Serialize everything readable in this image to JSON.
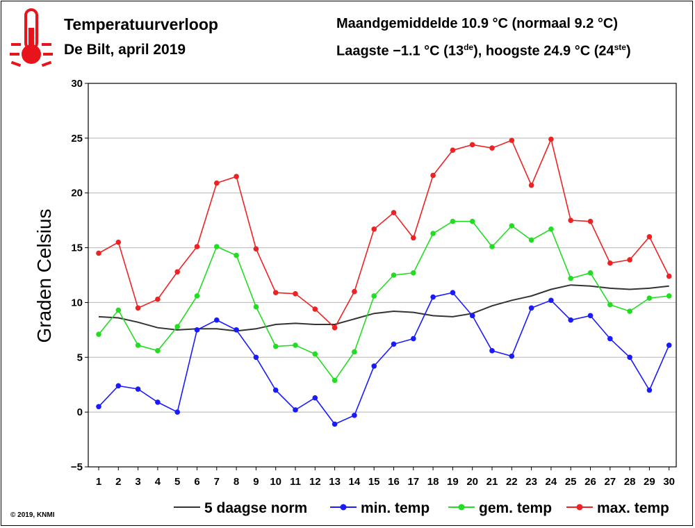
{
  "header": {
    "title": "Temperatuurverloop",
    "subtitle": "De Bilt, april 2019",
    "monthly_avg": "Maandgemiddelde 10.9 °C (normaal 9.2 °C)",
    "extremes_main": "Laagste −1.1 °C (13",
    "extremes_sup1": "de",
    "extremes_mid": "), hoogste 24.9 °C (24",
    "extremes_sup2": "ste",
    "extremes_end": ")"
  },
  "footer": {
    "copyright": "© 2019, KNMI"
  },
  "chart_data": {
    "type": "line",
    "ylabel": "Graden Celsius",
    "xlabel": "",
    "ylim": [
      -5,
      30
    ],
    "yticks": [
      -5,
      0,
      5,
      10,
      15,
      20,
      25,
      30
    ],
    "x": [
      1,
      2,
      3,
      4,
      5,
      6,
      7,
      8,
      9,
      10,
      11,
      12,
      13,
      14,
      15,
      16,
      17,
      18,
      19,
      20,
      21,
      22,
      23,
      24,
      25,
      26,
      27,
      28,
      29,
      30
    ],
    "grid": true,
    "legend_position": "bottom",
    "series": [
      {
        "name": "5 daagse norm",
        "color": "#333333",
        "markers": false,
        "values": [
          8.7,
          8.6,
          8.2,
          7.7,
          7.5,
          7.6,
          7.6,
          7.4,
          7.6,
          8.0,
          8.1,
          8.0,
          8.0,
          8.5,
          9.0,
          9.2,
          9.1,
          8.8,
          8.7,
          9.0,
          9.7,
          10.2,
          10.6,
          11.2,
          11.6,
          11.5,
          11.3,
          11.2,
          11.3,
          11.5
        ]
      },
      {
        "name": "min. temp",
        "color": "#1a1aff",
        "markers": true,
        "values": [
          0.5,
          2.4,
          2.1,
          0.9,
          0.0,
          7.5,
          8.4,
          7.5,
          5.0,
          2.0,
          0.2,
          1.3,
          -1.1,
          -0.3,
          4.2,
          6.2,
          6.7,
          10.5,
          10.9,
          8.8,
          5.6,
          5.1,
          9.5,
          10.2,
          8.4,
          8.8,
          6.7,
          5.0,
          2.0,
          6.1
        ]
      },
      {
        "name": "gem. temp",
        "color": "#22dd22",
        "markers": true,
        "values": [
          7.1,
          9.3,
          6.1,
          5.6,
          7.8,
          10.6,
          15.1,
          14.3,
          9.6,
          6.0,
          6.1,
          5.3,
          2.9,
          5.5,
          10.6,
          12.5,
          12.7,
          16.3,
          17.4,
          17.4,
          15.1,
          17.0,
          15.7,
          16.7,
          12.2,
          12.7,
          9.8,
          9.2,
          10.4,
          10.6
        ]
      },
      {
        "name": "max. temp",
        "color": "#ee2222",
        "markers": true,
        "values": [
          14.5,
          15.5,
          9.5,
          10.3,
          12.8,
          15.1,
          20.9,
          21.5,
          14.9,
          10.9,
          10.8,
          9.4,
          7.7,
          11.0,
          16.7,
          18.2,
          15.9,
          21.6,
          23.9,
          24.4,
          24.1,
          24.8,
          20.7,
          24.9,
          17.5,
          17.4,
          13.6,
          13.9,
          16.0,
          12.4
        ]
      }
    ]
  }
}
